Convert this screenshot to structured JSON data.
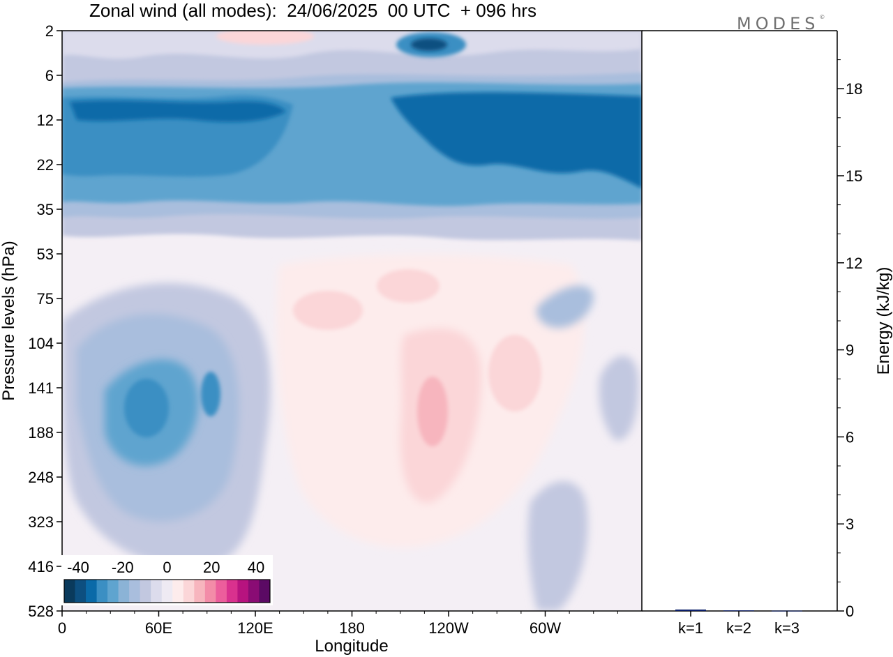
{
  "header": {
    "title": "Zonal wind (all modes):  24/06/2025  00 UTC  + 096 hrs",
    "brand": "MODES",
    "brand_mark": "©"
  },
  "chart_data": [
    {
      "type": "heatmap",
      "title": "Zonal wind (all modes):  24/06/2025  00 UTC  + 096 hrs",
      "xlabel": "Longitude",
      "ylabel": "Pressure levels (hPa)",
      "x_ticks": [
        "0",
        "60E",
        "120E",
        "180",
        "120W",
        "60W"
      ],
      "x_tick_degrees": [
        0,
        60,
        120,
        180,
        240,
        300
      ],
      "xlim": [
        0,
        360
      ],
      "y_ticks": [
        "2",
        "6",
        "12",
        "22",
        "35",
        "53",
        "75",
        "104",
        "141",
        "188",
        "248",
        "323",
        "416",
        "528"
      ],
      "y_scale": "pressure levels, top to bottom",
      "colorbar": {
        "labels": [
          "-40",
          "-20",
          "0",
          "20",
          "40"
        ],
        "colors": [
          "#0a3a5c",
          "#0d4f80",
          "#0a6aa8",
          "#3b8fc3",
          "#5fa4cf",
          "#8bb3d6",
          "#a9bedd",
          "#c2c8e0",
          "#dcdcec",
          "#eeeaf3",
          "#fdecec",
          "#fbd6d8",
          "#f7b5be",
          "#f38ca8",
          "#ec5e9c",
          "#d9318e",
          "#b7137f",
          "#8a0c74",
          "#5b0a64"
        ],
        "levels": [
          -45,
          -40,
          -35,
          -30,
          -25,
          -20,
          -15,
          -10,
          -5,
          0,
          5,
          10,
          15,
          20,
          25,
          30,
          35,
          40,
          45
        ]
      },
      "features": [
        {
          "name": "stratospheric easterly band",
          "lon_range": [
            0,
            360
          ],
          "level_range": [
            "6",
            "35"
          ],
          "value_range": [
            -35,
            -15
          ]
        },
        {
          "name": "easterly core",
          "lon_range": [
            210,
            240
          ],
          "level": "2",
          "value_range": [
            -35,
            -30
          ]
        },
        {
          "name": "upper tropospheric easterly jet",
          "lon_range": [
            30,
            110
          ],
          "level_range": [
            "104",
            "323"
          ],
          "value_range": [
            -30,
            -10
          ]
        },
        {
          "name": "westerly region",
          "lon_range": [
            150,
            310
          ],
          "level_range": [
            "75",
            "248"
          ],
          "value_range": [
            5,
            15
          ]
        }
      ]
    },
    {
      "type": "bar",
      "categories": [
        "k=1",
        "k=2",
        "k=3"
      ],
      "values": [
        0.05,
        0.02,
        0.01
      ],
      "ylabel": "Energy (kJ/kg)",
      "y_ticks": [
        0,
        3,
        6,
        9,
        12,
        15,
        18
      ],
      "ylim": [
        0,
        20
      ],
      "bar_color": "#0b1f6b"
    }
  ]
}
